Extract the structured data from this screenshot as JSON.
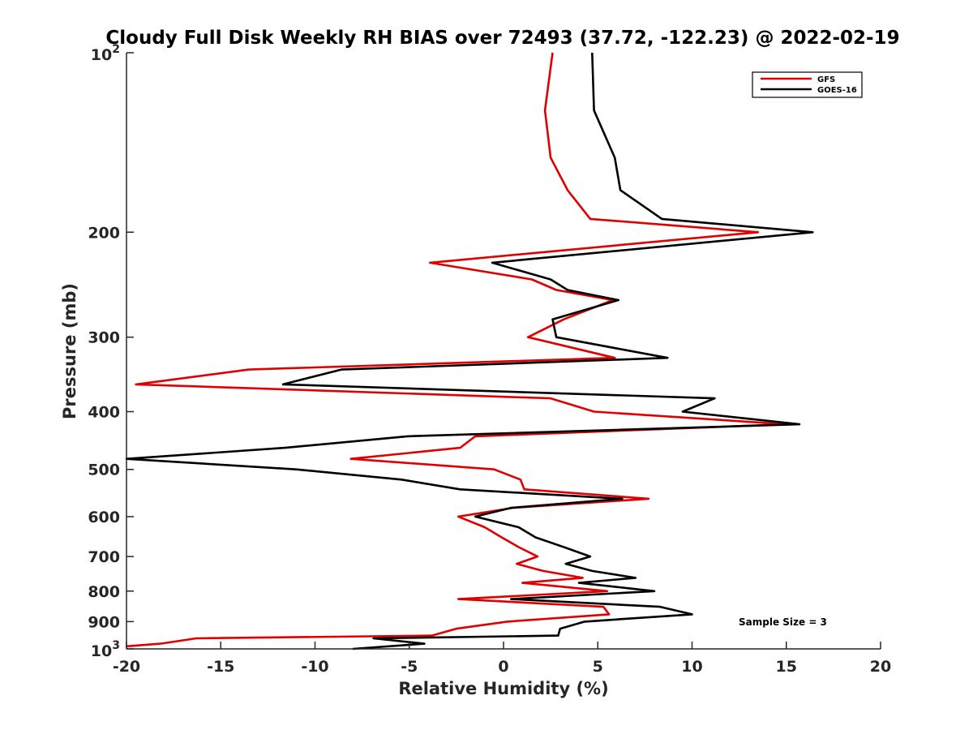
{
  "chart_data": {
    "type": "line",
    "title": "Cloudy Full Disk Weekly RH BIAS over 72493 (37.72, -122.23) @ 2022-02-19",
    "xlabel": "Relative Humidity (%)",
    "ylabel": "Pressure (mb)",
    "xlim": [
      -20,
      20
    ],
    "ylim": [
      100,
      1000
    ],
    "y_scale": "log",
    "y_reversed": true,
    "x_ticks": [
      "-20",
      "-15",
      "-10",
      "-5",
      "0",
      "5",
      "10",
      "15",
      "20"
    ],
    "x_tick_values": [
      -20,
      -15,
      -10,
      -5,
      0,
      5,
      10,
      15,
      20
    ],
    "y_ticks": [
      {
        "value": 100,
        "base": "10",
        "exp": "2"
      },
      {
        "value": 200,
        "label": "200"
      },
      {
        "value": 300,
        "label": "300"
      },
      {
        "value": 400,
        "label": "400"
      },
      {
        "value": 500,
        "label": "500"
      },
      {
        "value": 600,
        "label": "600"
      },
      {
        "value": 700,
        "label": "700"
      },
      {
        "value": 800,
        "label": "800"
      },
      {
        "value": 900,
        "label": "900"
      },
      {
        "value": 1000,
        "base": "10",
        "exp": "3"
      }
    ],
    "legend_position": "top-right",
    "grid": false,
    "annotation": "Sample Size = 3",
    "series": [
      {
        "name": "GFS",
        "color": "#e00000",
        "points": [
          [
            2.6,
            100
          ],
          [
            2.2,
            125
          ],
          [
            2.5,
            150
          ],
          [
            3.4,
            170
          ],
          [
            4.6,
            190
          ],
          [
            13.5,
            200
          ],
          [
            -3.9,
            225
          ],
          [
            1.5,
            240
          ],
          [
            2.8,
            250
          ],
          [
            5.8,
            260
          ],
          [
            3.2,
            280
          ],
          [
            1.3,
            300
          ],
          [
            5.9,
            325
          ],
          [
            -13.5,
            340
          ],
          [
            -19.5,
            360
          ],
          [
            2.5,
            380
          ],
          [
            4.8,
            400
          ],
          [
            15.0,
            420
          ],
          [
            -1.5,
            440
          ],
          [
            -2.3,
            460
          ],
          [
            -8.1,
            480
          ],
          [
            -0.5,
            500
          ],
          [
            0.9,
            520
          ],
          [
            1.1,
            540
          ],
          [
            7.7,
            560
          ],
          [
            0.5,
            580
          ],
          [
            -2.4,
            600
          ],
          [
            -1.0,
            625
          ],
          [
            -0.1,
            650
          ],
          [
            0.8,
            675
          ],
          [
            1.8,
            700
          ],
          [
            0.7,
            720
          ],
          [
            2.1,
            740
          ],
          [
            4.2,
            760
          ],
          [
            1.0,
            775
          ],
          [
            5.5,
            800
          ],
          [
            -2.4,
            825
          ],
          [
            5.3,
            850
          ],
          [
            5.6,
            875
          ],
          [
            0.2,
            900
          ],
          [
            -2.5,
            925
          ],
          [
            -3.8,
            950
          ],
          [
            -16.3,
            960
          ],
          [
            -18.2,
            980
          ],
          [
            -20,
            990
          ]
        ]
      },
      {
        "name": "GOES-16",
        "color": "#000000",
        "points": [
          [
            4.7,
            100
          ],
          [
            4.8,
            125
          ],
          [
            5.9,
            150
          ],
          [
            6.2,
            170
          ],
          [
            8.4,
            190
          ],
          [
            16.4,
            200
          ],
          [
            -0.6,
            225
          ],
          [
            2.5,
            240
          ],
          [
            3.4,
            250
          ],
          [
            6.1,
            260
          ],
          [
            2.6,
            280
          ],
          [
            2.8,
            300
          ],
          [
            8.7,
            325
          ],
          [
            -8.6,
            340
          ],
          [
            -11.7,
            360
          ],
          [
            11.2,
            380
          ],
          [
            9.5,
            400
          ],
          [
            15.7,
            420
          ],
          [
            -5.1,
            440
          ],
          [
            -11.6,
            460
          ],
          [
            -20,
            480
          ],
          [
            -11.0,
            500
          ],
          [
            -5.4,
            520
          ],
          [
            -2.3,
            540
          ],
          [
            6.3,
            560
          ],
          [
            0.4,
            580
          ],
          [
            -1.5,
            600
          ],
          [
            0.8,
            625
          ],
          [
            1.7,
            650
          ],
          [
            3.2,
            675
          ],
          [
            4.6,
            700
          ],
          [
            3.3,
            720
          ],
          [
            4.7,
            740
          ],
          [
            7.0,
            760
          ],
          [
            4.0,
            775
          ],
          [
            8.0,
            800
          ],
          [
            0.4,
            825
          ],
          [
            8.3,
            850
          ],
          [
            10.0,
            875
          ],
          [
            4.3,
            900
          ],
          [
            3.0,
            925
          ],
          [
            2.9,
            950
          ],
          [
            -6.9,
            960
          ],
          [
            -4.2,
            980
          ],
          [
            -8.0,
            1000
          ]
        ]
      }
    ]
  }
}
